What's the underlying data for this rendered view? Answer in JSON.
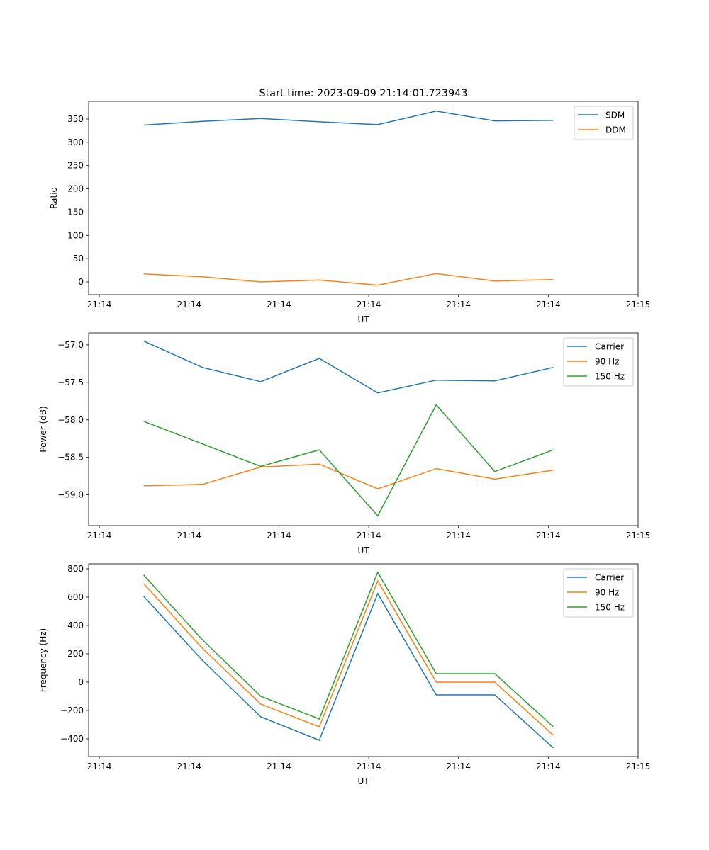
{
  "chart_data": [
    {
      "type": "line",
      "title": "Start time: 2023-09-09 21:14:01.723943",
      "xlabel": "UT",
      "ylabel": "Ratio",
      "x": [
        0,
        1,
        2,
        3,
        4,
        5,
        6,
        7
      ],
      "xticks": [
        -0.76,
        0.775,
        2.31,
        3.845,
        5.38,
        6.915,
        8.45
      ],
      "xtick_labels": [
        "21:14",
        "21:14",
        "21:14",
        "21:14",
        "21:14",
        "21:14",
        "21:15"
      ],
      "xlim": [
        -0.943,
        8.45
      ],
      "ylim": [
        -27.4,
        388
      ],
      "yticks": [
        0,
        50,
        100,
        150,
        200,
        250,
        300,
        350
      ],
      "ytick_labels": [
        "0",
        "50",
        "100",
        "150",
        "200",
        "250",
        "300",
        "350"
      ],
      "legend": "top-right",
      "series": [
        {
          "name": "SDM",
          "color": "#1f77b4",
          "values": [
            337,
            345,
            351,
            344,
            338,
            367,
            346,
            347
          ]
        },
        {
          "name": "DDM",
          "color": "#ff7f0e",
          "values": [
            17,
            11,
            0,
            4,
            -7,
            18,
            2,
            5
          ]
        }
      ]
    },
    {
      "type": "line",
      "title": "",
      "xlabel": "UT",
      "ylabel": "Power (dB)",
      "x": [
        0,
        1,
        2,
        3,
        4,
        5,
        6,
        7
      ],
      "xticks": [
        -0.76,
        0.775,
        2.31,
        3.845,
        5.38,
        6.915,
        8.45
      ],
      "xtick_labels": [
        "21:14",
        "21:14",
        "21:14",
        "21:14",
        "21:14",
        "21:14",
        "21:15"
      ],
      "xlim": [
        -0.943,
        8.45
      ],
      "ylim": [
        -59.41,
        -56.84
      ],
      "yticks": [
        -59.0,
        -58.5,
        -58.0,
        -57.5,
        -57.0
      ],
      "ytick_labels": [
        "−59.0",
        "−58.5",
        "−58.0",
        "−57.5",
        "−57.0"
      ],
      "legend": "top-right",
      "series": [
        {
          "name": "Carrier",
          "color": "#1f77b4",
          "values": [
            -56.95,
            -57.3,
            -57.49,
            -57.18,
            -57.64,
            -57.47,
            -57.48,
            -57.3
          ]
        },
        {
          "name": "90 Hz",
          "color": "#ff7f0e",
          "values": [
            -58.88,
            -58.86,
            -58.63,
            -58.59,
            -58.92,
            -58.65,
            -58.79,
            -58.67
          ]
        },
        {
          "name": "150 Hz",
          "color": "#2ca02c",
          "values": [
            -58.02,
            -58.32,
            -58.62,
            -58.4,
            -59.28,
            -57.8,
            -58.69,
            -58.4
          ]
        }
      ]
    },
    {
      "type": "line",
      "title": "",
      "xlabel": "UT",
      "ylabel": "Frequency (Hz)",
      "x": [
        0,
        1,
        2,
        3,
        4,
        5,
        6,
        7
      ],
      "xticks": [
        -0.76,
        0.775,
        2.31,
        3.845,
        5.38,
        6.915,
        8.45
      ],
      "xtick_labels": [
        "21:14",
        "21:14",
        "21:14",
        "21:14",
        "21:14",
        "21:14",
        "21:15"
      ],
      "xlim": [
        -0.943,
        8.45
      ],
      "ylim": [
        -525,
        835
      ],
      "yticks": [
        -400,
        -200,
        0,
        200,
        400,
        600,
        800
      ],
      "ytick_labels": [
        "−400",
        "−200",
        "0",
        "200",
        "400",
        "600",
        "800"
      ],
      "legend": "top-right",
      "series": [
        {
          "name": "Carrier",
          "color": "#1f77b4",
          "values": [
            605,
            155,
            -245,
            -410,
            625,
            -90,
            -90,
            -465
          ]
        },
        {
          "name": "90 Hz",
          "color": "#ff7f0e",
          "values": [
            695,
            240,
            -155,
            -315,
            715,
            0,
            0,
            -375
          ]
        },
        {
          "name": "150 Hz",
          "color": "#2ca02c",
          "values": [
            755,
            300,
            -100,
            -260,
            775,
            60,
            60,
            -315
          ]
        }
      ]
    }
  ]
}
